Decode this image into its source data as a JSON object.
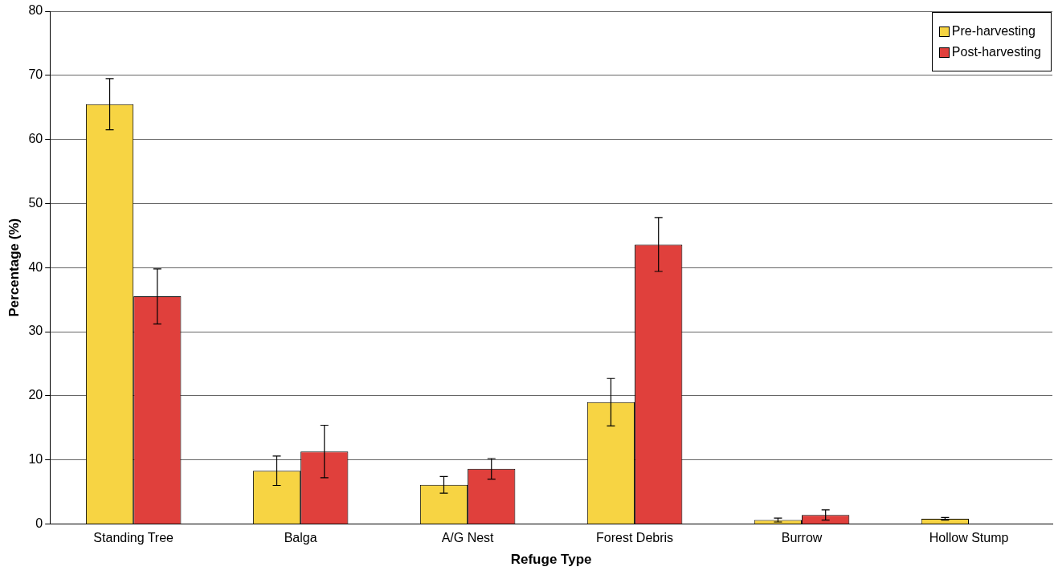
{
  "chart_data": {
    "type": "bar",
    "xlabel": "Refuge Type",
    "ylabel": "Percentage (%)",
    "categories": [
      "Standing Tree",
      "Balga",
      "A/G Nest",
      "Forest Debris",
      "Burrow",
      "Hollow Stump"
    ],
    "series": [
      {
        "name": "Pre-harvesting",
        "color": "#f7d443",
        "values": [
          65.5,
          8.3,
          6.1,
          19,
          0.6,
          0.8
        ],
        "errors": [
          4,
          2.3,
          1.3,
          3.7,
          0.3,
          0.2
        ]
      },
      {
        "name": "Post-harvesting",
        "color": "#e0403c",
        "values": [
          35.5,
          11.3,
          8.6,
          43.6,
          1.4,
          null
        ],
        "errors": [
          4.3,
          4.1,
          1.6,
          4.2,
          0.8,
          null
        ]
      }
    ],
    "ylim": [
      0,
      80
    ],
    "yticks": [
      0,
      10,
      20,
      30,
      40,
      50,
      60,
      70,
      80
    ],
    "grid": "y",
    "legend": "top right"
  }
}
